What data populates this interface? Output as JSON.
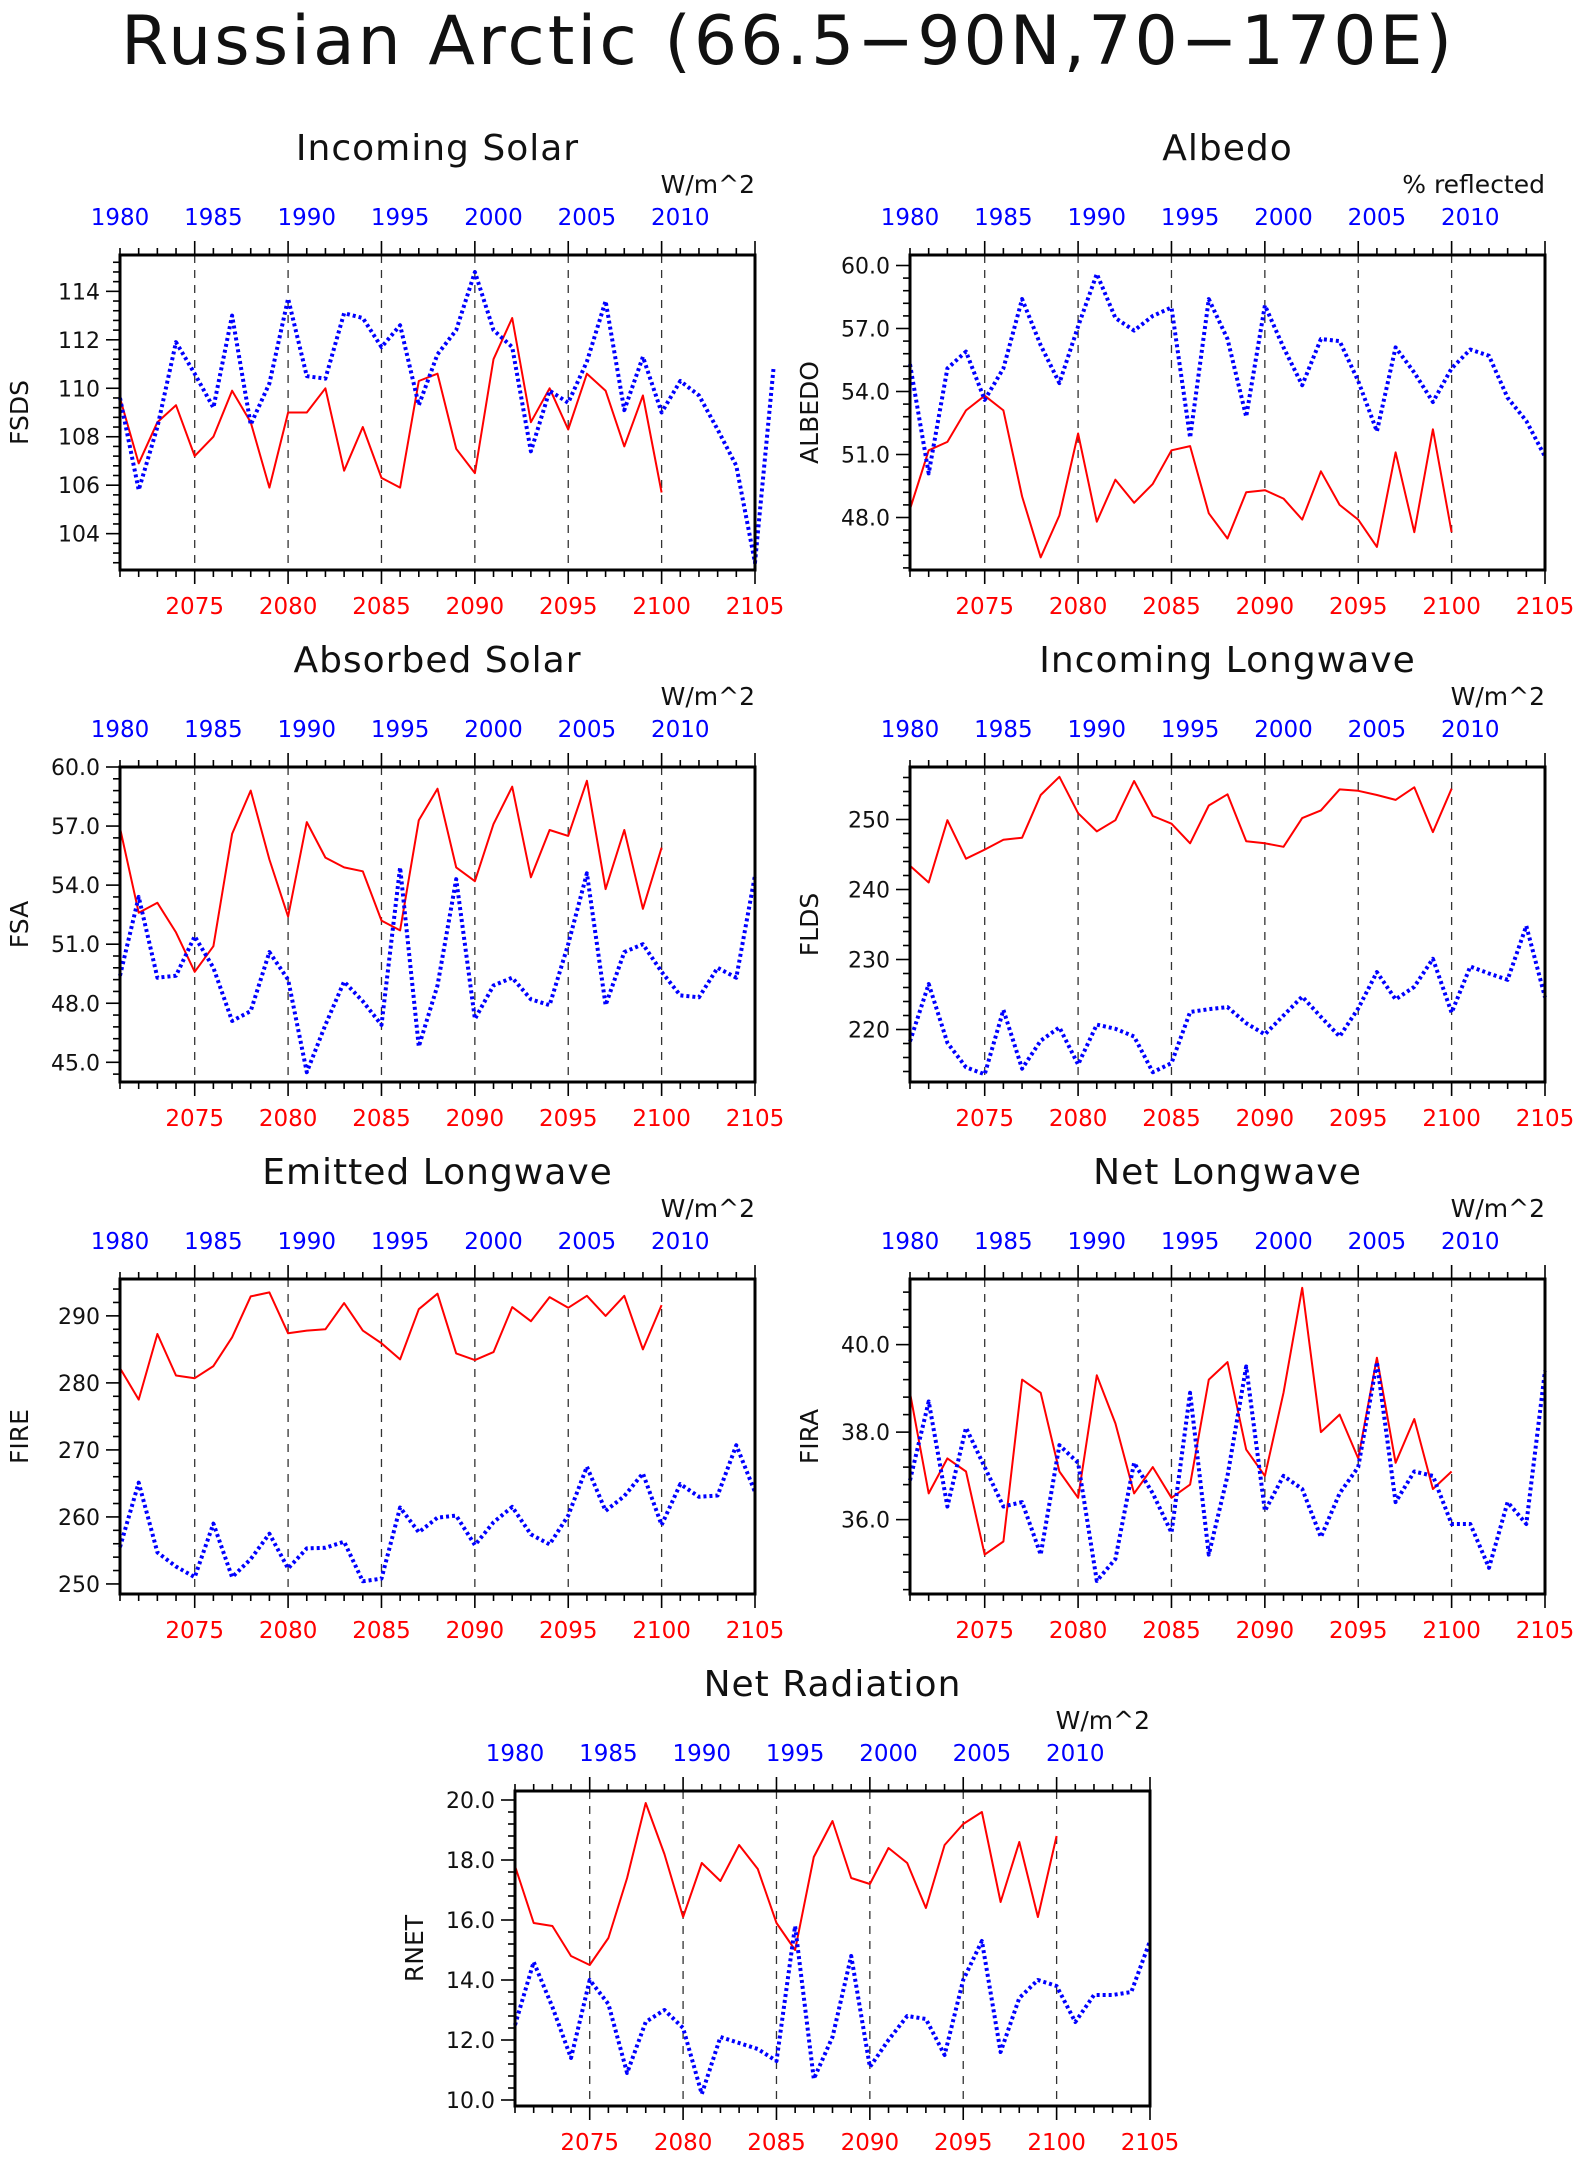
{
  "page_title": "Russian Arctic (66.5−90N,70−170E)",
  "colors": {
    "future": "#ff0000",
    "historical": "#0000ff",
    "axis": "#000000"
  },
  "chart_data": [
    {
      "id": "fsds",
      "type": "line",
      "title": "Incoming Solar",
      "ylabel": "FSDS",
      "units": "W/m^2",
      "ylim": [
        102.5,
        115.5
      ],
      "yticks": [
        104,
        106,
        108,
        110,
        112,
        114
      ],
      "ydecimals": 0,
      "bottom_ticks": [
        "2075",
        "2080",
        "2085",
        "2090",
        "2095",
        "2100",
        "2105"
      ],
      "top_ticks": [
        "1980",
        "1985",
        "1990",
        "1995",
        "2000",
        "2005",
        "2010"
      ],
      "series": [
        {
          "x_start": 2071,
          "style": "future",
          "values": [
            109.6,
            106.9,
            108.6,
            109.3,
            107.2,
            108.0,
            109.9,
            108.6,
            105.9,
            109.0,
            109.0,
            110.0,
            106.6,
            108.4,
            106.3,
            105.9,
            110.3,
            110.6,
            107.5,
            106.5,
            111.2,
            112.9,
            108.6,
            110.0,
            108.3,
            110.6,
            109.9,
            107.6,
            109.7,
            105.7
          ]
        },
        {
          "x_start": 2071,
          "style": "historical",
          "values": [
            109.6,
            105.8,
            108.4,
            111.9,
            110.6,
            109.2,
            113.0,
            108.5,
            110.2,
            113.7,
            110.5,
            110.4,
            113.1,
            112.9,
            111.7,
            112.6,
            109.3,
            111.4,
            112.4,
            114.8,
            112.4,
            111.7,
            107.4,
            109.9,
            109.4,
            111.1,
            113.6,
            109.1,
            111.3,
            109.0,
            110.3,
            109.7,
            108.3,
            106.8,
            102.8,
            110.9
          ]
        }
      ]
    },
    {
      "id": "albedo",
      "type": "line",
      "title": "Albedo",
      "ylabel": "ALBEDO",
      "units": "% reflected",
      "ylim": [
        45.5,
        60.5
      ],
      "yticks": [
        48,
        51,
        54,
        57,
        60
      ],
      "ydecimals": 1,
      "bottom_ticks": [
        "2075",
        "2080",
        "2085",
        "2090",
        "2095",
        "2100",
        "2105"
      ],
      "top_ticks": [
        "1980",
        "1985",
        "1990",
        "1995",
        "2000",
        "2005",
        "2010"
      ],
      "series": [
        {
          "x_start": 2071,
          "style": "future",
          "values": [
            48.4,
            51.2,
            51.6,
            53.1,
            53.8,
            53.1,
            49.0,
            46.1,
            48.1,
            52.0,
            47.8,
            49.8,
            48.7,
            49.6,
            51.2,
            51.4,
            48.2,
            47.0,
            49.2,
            49.3,
            48.9,
            47.9,
            50.2,
            48.6,
            47.9,
            46.6,
            51.1,
            47.3,
            52.2,
            47.3
          ]
        },
        {
          "x_start": 2071,
          "style": "historical",
          "values": [
            55.3,
            50.1,
            55.1,
            55.9,
            53.6,
            55.1,
            58.4,
            56.2,
            54.4,
            57.1,
            59.6,
            57.5,
            56.9,
            57.6,
            58.0,
            51.8,
            58.4,
            56.5,
            52.8,
            58.1,
            56.1,
            54.3,
            56.5,
            56.4,
            54.5,
            52.1,
            56.1,
            54.9,
            53.5,
            55.1,
            56.0,
            55.7,
            53.7,
            52.6,
            50.9
          ]
        }
      ]
    },
    {
      "id": "fsa",
      "type": "line",
      "title": "Absorbed Solar",
      "ylabel": "FSA",
      "units": "W/m^2",
      "ylim": [
        44.0,
        60.0
      ],
      "yticks": [
        45,
        48,
        51,
        54,
        57,
        60
      ],
      "ydecimals": 1,
      "bottom_ticks": [
        "2075",
        "2080",
        "2085",
        "2090",
        "2095",
        "2100",
        "2105"
      ],
      "top_ticks": [
        "1980",
        "1985",
        "1990",
        "1995",
        "2000",
        "2005",
        "2010"
      ],
      "series": [
        {
          "x_start": 2071,
          "style": "future",
          "values": [
            56.9,
            52.6,
            53.1,
            51.6,
            49.6,
            50.9,
            56.6,
            58.8,
            55.3,
            52.4,
            57.2,
            55.4,
            54.9,
            54.7,
            52.2,
            51.7,
            57.3,
            58.9,
            54.9,
            54.2,
            57.1,
            59.0,
            54.4,
            56.8,
            56.5,
            59.3,
            53.8,
            56.8,
            52.8,
            55.9
          ]
        },
        {
          "x_start": 2071,
          "style": "historical",
          "values": [
            49.4,
            53.4,
            49.3,
            49.4,
            51.4,
            49.8,
            47.1,
            47.6,
            50.6,
            49.2,
            44.5,
            46.9,
            49.1,
            48.1,
            46.9,
            54.9,
            45.8,
            48.9,
            54.3,
            47.2,
            48.9,
            49.3,
            48.2,
            47.9,
            51.0,
            54.6,
            47.9,
            50.6,
            51.0,
            49.6,
            48.4,
            48.3,
            49.8,
            49.3,
            54.5
          ]
        }
      ]
    },
    {
      "id": "flds",
      "type": "line",
      "title": "Incoming Longwave",
      "ylabel": "FLDS",
      "units": "W/m^2",
      "ylim": [
        212.5,
        257.5
      ],
      "yticks": [
        220,
        230,
        240,
        250
      ],
      "ydecimals": 0,
      "bottom_ticks": [
        "2075",
        "2080",
        "2085",
        "2090",
        "2095",
        "2100",
        "2105"
      ],
      "top_ticks": [
        "1980",
        "1985",
        "1990",
        "1995",
        "2000",
        "2005",
        "2010"
      ],
      "series": [
        {
          "x_start": 2071,
          "style": "future",
          "values": [
            243.4,
            241.0,
            249.9,
            244.4,
            245.7,
            247.1,
            247.4,
            253.5,
            256.1,
            250.9,
            248.3,
            249.9,
            255.5,
            250.5,
            249.4,
            246.6,
            252.0,
            253.6,
            246.9,
            246.6,
            246.1,
            250.2,
            251.3,
            254.3,
            254.1,
            253.5,
            252.8,
            254.6,
            248.2,
            254.4
          ]
        },
        {
          "x_start": 2071,
          "style": "historical",
          "values": [
            218.3,
            226.5,
            218.1,
            214.6,
            213.6,
            222.8,
            214.4,
            218.4,
            220.3,
            215.0,
            220.7,
            220.1,
            219.0,
            213.9,
            215.2,
            222.5,
            222.9,
            223.2,
            220.9,
            219.3,
            222.0,
            224.7,
            221.8,
            219.0,
            223.0,
            228.2,
            224.3,
            226.1,
            230.1,
            222.4,
            229.0,
            228.0,
            227.1,
            234.8,
            224.6
          ]
        }
      ]
    },
    {
      "id": "fire",
      "type": "line",
      "title": "Emitted Longwave",
      "ylabel": "FIRE",
      "units": "W/m^2",
      "ylim": [
        248.5,
        295.5
      ],
      "yticks": [
        250,
        260,
        270,
        280,
        290
      ],
      "ydecimals": 0,
      "bottom_ticks": [
        "2075",
        "2080",
        "2085",
        "2090",
        "2095",
        "2100",
        "2105"
      ],
      "top_ticks": [
        "1980",
        "1985",
        "1990",
        "1995",
        "2000",
        "2005",
        "2010"
      ],
      "series": [
        {
          "x_start": 2071,
          "style": "future",
          "values": [
            282.2,
            277.5,
            287.3,
            281.1,
            280.7,
            282.5,
            286.8,
            292.9,
            293.5,
            287.4,
            287.8,
            288.0,
            291.9,
            287.8,
            285.9,
            283.5,
            291.0,
            293.3,
            284.4,
            283.4,
            284.6,
            291.3,
            289.2,
            292.8,
            291.2,
            293.0,
            290.0,
            293.0,
            285.0,
            291.6
          ]
        },
        {
          "x_start": 2071,
          "style": "historical",
          "values": [
            255.5,
            265.1,
            254.7,
            252.6,
            251.0,
            259.0,
            251.0,
            253.7,
            257.5,
            252.3,
            255.3,
            255.4,
            256.3,
            250.4,
            250.8,
            261.4,
            257.7,
            259.9,
            260.2,
            255.8,
            259.2,
            261.5,
            257.4,
            255.9,
            260.2,
            267.5,
            260.9,
            263.1,
            266.5,
            258.8,
            264.9,
            263.0,
            263.2,
            270.7,
            263.7
          ]
        }
      ]
    },
    {
      "id": "fira",
      "type": "line",
      "title": "Net Longwave",
      "ylabel": "FIRA",
      "units": "W/m^2",
      "ylim": [
        34.3,
        41.5
      ],
      "yticks": [
        36,
        38,
        40
      ],
      "ydecimals": 1,
      "bottom_ticks": [
        "2075",
        "2080",
        "2085",
        "2090",
        "2095",
        "2100",
        "2105"
      ],
      "top_ticks": [
        "1980",
        "1985",
        "1990",
        "1995",
        "2000",
        "2005",
        "2010"
      ],
      "series": [
        {
          "x_start": 2071,
          "style": "future",
          "values": [
            38.9,
            36.6,
            37.4,
            37.1,
            35.2,
            35.5,
            39.2,
            38.9,
            37.1,
            36.5,
            39.3,
            38.2,
            36.6,
            37.2,
            36.5,
            36.8,
            39.2,
            39.6,
            37.6,
            37.0,
            38.9,
            41.3,
            38.0,
            38.4,
            37.4,
            39.7,
            37.3,
            38.3,
            36.7,
            37.1
          ]
        },
        {
          "x_start": 2071,
          "style": "historical",
          "values": [
            36.9,
            38.7,
            36.3,
            38.1,
            37.2,
            36.3,
            36.4,
            35.2,
            37.7,
            37.3,
            34.6,
            35.1,
            37.3,
            36.6,
            35.7,
            38.9,
            35.2,
            37.0,
            39.5,
            36.2,
            37.0,
            36.7,
            35.6,
            36.6,
            37.2,
            39.6,
            36.4,
            37.1,
            37.0,
            35.9,
            35.9,
            34.9,
            36.4,
            35.9,
            39.4
          ]
        }
      ]
    },
    {
      "id": "rnet",
      "type": "line",
      "title": "Net Radiation",
      "ylabel": "RNET",
      "units": "W/m^2",
      "ylim": [
        9.8,
        20.3
      ],
      "yticks": [
        10,
        12,
        14,
        16,
        18,
        20
      ],
      "ydecimals": 1,
      "bottom_ticks": [
        "2075",
        "2080",
        "2085",
        "2090",
        "2095",
        "2100",
        "2105"
      ],
      "top_ticks": [
        "1980",
        "1985",
        "1990",
        "1995",
        "2000",
        "2005",
        "2010"
      ],
      "series": [
        {
          "x_start": 2071,
          "style": "future",
          "values": [
            17.8,
            15.9,
            15.8,
            14.8,
            14.5,
            15.4,
            17.4,
            19.9,
            18.2,
            16.1,
            17.9,
            17.3,
            18.5,
            17.7,
            15.9,
            15.0,
            18.1,
            19.3,
            17.4,
            17.2,
            18.4,
            17.9,
            16.4,
            18.5,
            19.2,
            19.6,
            16.6,
            18.6,
            16.1,
            18.8
          ]
        },
        {
          "x_start": 2071,
          "style": "historical",
          "values": [
            12.5,
            14.6,
            13.1,
            11.4,
            14.0,
            13.2,
            10.9,
            12.6,
            13.0,
            12.4,
            10.2,
            12.1,
            11.9,
            11.7,
            11.3,
            15.8,
            10.7,
            12.1,
            14.8,
            11.1,
            12.0,
            12.8,
            12.7,
            11.5,
            14.0,
            15.3,
            11.6,
            13.4,
            14.0,
            13.8,
            12.6,
            13.5,
            13.5,
            13.6,
            15.3
          ]
        }
      ]
    }
  ]
}
